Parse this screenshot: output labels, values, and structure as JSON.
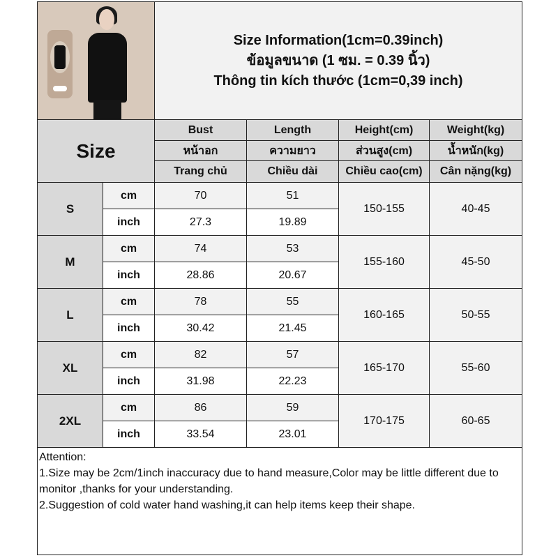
{
  "title": {
    "line1": "Size Information(1cm=0.39inch)",
    "line2": "ข้อมูลขนาด (1 ซม. = 0.39 นิ้ว)",
    "line3": "Thông tin kích thước (1cm=0,39 inch)"
  },
  "header": {
    "size_label": "Size",
    "columns": [
      {
        "en": "Bust",
        "th": "หน้าอก",
        "vi": "Trang chủ"
      },
      {
        "en": "Length",
        "th": "ความยาว",
        "vi": "Chiều dài"
      },
      {
        "en": "Height(cm)",
        "th": "ส่วนสูง(cm)",
        "vi": "Chiều cao(cm)"
      },
      {
        "en": "Weight(kg)",
        "th": "น้ำหนัก(kg)",
        "vi": "Cân nặng(kg)"
      }
    ]
  },
  "units": {
    "cm": "cm",
    "inch": "inch"
  },
  "rows": [
    {
      "size": "S",
      "bust_cm": "70",
      "length_cm": "51",
      "bust_in": "27.3",
      "length_in": "19.89",
      "height": "150-155",
      "weight": "40-45"
    },
    {
      "size": "M",
      "bust_cm": "74",
      "length_cm": "53",
      "bust_in": "28.86",
      "length_in": "20.67",
      "height": "155-160",
      "weight": "45-50"
    },
    {
      "size": "L",
      "bust_cm": "78",
      "length_cm": "55",
      "bust_in": "30.42",
      "length_in": "21.45",
      "height": "160-165",
      "weight": "50-55"
    },
    {
      "size": "XL",
      "bust_cm": "82",
      "length_cm": "57",
      "bust_in": "31.98",
      "length_in": "22.23",
      "height": "165-170",
      "weight": "55-60"
    },
    {
      "size": "2XL",
      "bust_cm": "86",
      "length_cm": "59",
      "bust_in": "33.54",
      "length_in": "23.01",
      "height": "170-175",
      "weight": "60-65"
    }
  ],
  "attention": {
    "heading": "Attention:",
    "note1": "1.Size may be 2cm/1inch inaccuracy due to hand measure,Color may be little different due to monitor ,thanks for your understanding.",
    "note2": "2.Suggestion of cold water hand washing,it can help items keep their shape."
  },
  "colors": {
    "header_bg": "#d9d9d9",
    "cm_row_bg": "#f2f2f2",
    "inch_row_bg": "#ffffff",
    "border": "#222222"
  }
}
